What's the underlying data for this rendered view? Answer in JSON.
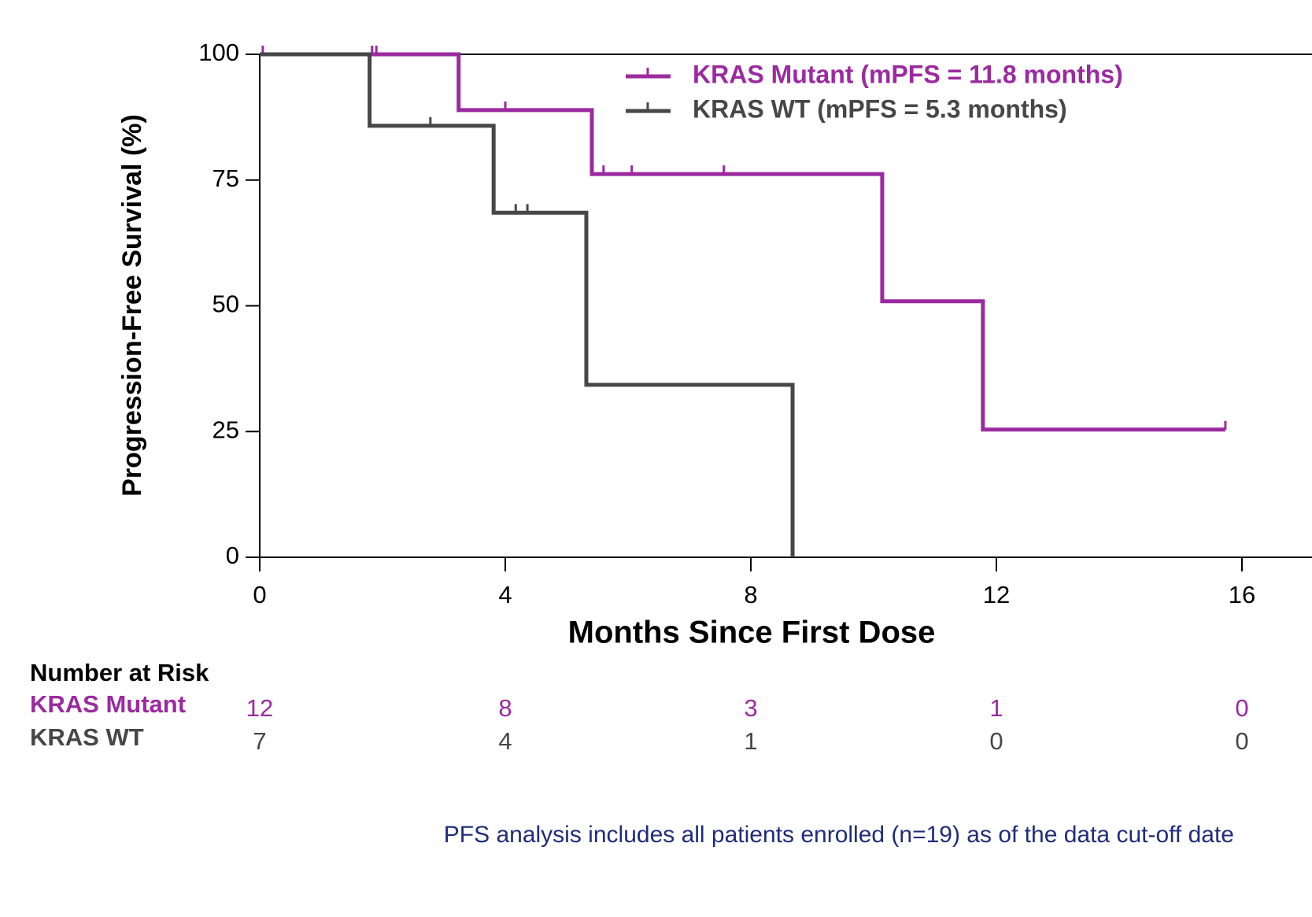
{
  "chart_data": {
    "type": "km",
    "y_label": "Progression-Free Survival (%)",
    "x_label": "Months Since First Dose",
    "xlim": [
      0,
      16
    ],
    "xticks": [
      0,
      4,
      8,
      12,
      16
    ],
    "ylim": [
      0,
      100
    ],
    "yticks": [
      0,
      25,
      50,
      75,
      100
    ],
    "series": [
      {
        "name": "KRAS Mutant (mPFS = 11.8 months)",
        "color": "#9b2aa0",
        "x": [
          0,
          3.24,
          3.24,
          5.41,
          5.41,
          10.14,
          10.14,
          11.78,
          11.78,
          15.73
        ],
        "values": [
          100,
          100,
          88.9,
          88.9,
          76.2,
          76.2,
          50.9,
          50.9,
          25.4,
          25.4
        ],
        "censored_x": [
          0.05,
          1.83,
          1.9,
          4.0,
          5.6,
          6.06,
          7.56,
          15.73
        ],
        "censored_values": [
          100,
          100,
          100,
          88.9,
          76.2,
          76.2,
          76.2,
          25.4
        ]
      },
      {
        "name": "KRAS WT (mPFS = 5.3 months)",
        "color": "#474747",
        "x": [
          0,
          1.79,
          1.79,
          3.81,
          3.81,
          5.32,
          5.32,
          8.68,
          8.68
        ],
        "values": [
          100,
          100,
          85.8,
          85.8,
          68.5,
          68.5,
          34.3,
          34.3,
          0
        ],
        "censored_x": [
          2.78,
          4.17,
          4.36
        ],
        "censored_values": [
          85.8,
          68.5,
          68.5
        ]
      }
    ],
    "risk_table": {
      "title": "Number at Risk",
      "rows": [
        {
          "label": "KRAS Mutant",
          "color": "#9b2aa0",
          "values": [
            12,
            8,
            3,
            1,
            0
          ]
        },
        {
          "label": "KRAS WT",
          "color": "#474747",
          "values": [
            7,
            4,
            1,
            0,
            0
          ]
        }
      ]
    },
    "footnote": "PFS analysis includes all patients enrolled (n=19) as of the data cut-off date"
  }
}
